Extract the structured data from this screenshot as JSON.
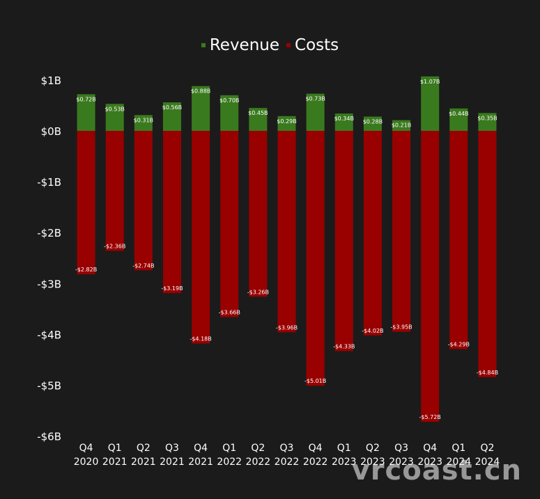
{
  "chart_data": {
    "type": "bar",
    "stacked": true,
    "legend": {
      "placement": "top-center"
    },
    "categories": [
      [
        "Q4",
        "2020"
      ],
      [
        "Q1",
        "2021"
      ],
      [
        "Q2",
        "2021"
      ],
      [
        "Q3",
        "2021"
      ],
      [
        "Q4",
        "2021"
      ],
      [
        "Q1",
        "2022"
      ],
      [
        "Q2",
        "2022"
      ],
      [
        "Q3",
        "2022"
      ],
      [
        "Q4",
        "2022"
      ],
      [
        "Q1",
        "2023"
      ],
      [
        "Q2",
        "2023"
      ],
      [
        "Q3",
        "2023"
      ],
      [
        "Q4",
        "2023"
      ],
      [
        "Q1",
        "2024"
      ],
      [
        "Q2",
        "2024"
      ]
    ],
    "series": [
      {
        "name": "Revenue",
        "color": "#3a7a1e",
        "values": [
          0.72,
          0.53,
          0.31,
          0.56,
          0.88,
          0.7,
          0.45,
          0.29,
          0.73,
          0.34,
          0.28,
          0.21,
          1.07,
          0.44,
          0.35
        ],
        "labels": [
          "$0.72B",
          "$0.53B",
          "$0.31B",
          "$0.56B",
          "$0.88B",
          "$0.70B",
          "$0.45B",
          "$0.29B",
          "$0.73B",
          "$0.34B",
          "$0.28B",
          "$0.21B",
          "$1.07B",
          "$0.44B",
          "$0.35B"
        ]
      },
      {
        "name": "Costs",
        "color": "#990000",
        "values": [
          -2.82,
          -2.36,
          -2.74,
          -3.19,
          -4.18,
          -3.66,
          -3.26,
          -3.96,
          -5.01,
          -4.33,
          -4.02,
          -3.95,
          -5.72,
          -4.29,
          -4.84
        ],
        "labels": [
          "-$2.82B",
          "-$2.36B",
          "-$2.74B",
          "-$3.19B",
          "-$4.18B",
          "-$3.66B",
          "-$3.26B",
          "-$3.96B",
          "-$5.01B",
          "-$4.33B",
          "-$4.02B",
          "-$3.95B",
          "-$5.72B",
          "-$4.29B",
          "-$4.84B"
        ]
      }
    ],
    "ylim": [
      -6,
      1
    ],
    "yticks": [
      1,
      0,
      -1,
      -2,
      -3,
      -4,
      -5,
      -6
    ],
    "ytick_labels": [
      "$1B",
      "$0B",
      "-$1B",
      "-$2B",
      "-$3B",
      "-$4B",
      "-$5B",
      "-$6B"
    ],
    "grid": false
  },
  "watermark": "vrcoast.cn"
}
